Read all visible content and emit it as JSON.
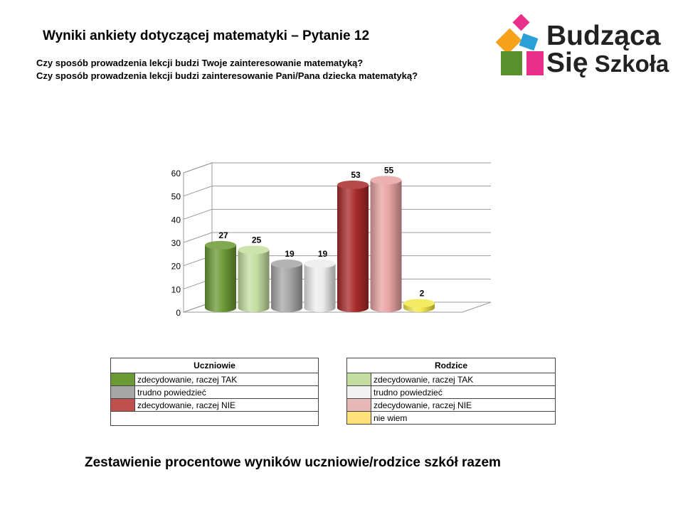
{
  "header": {
    "title": "Wyniki ankiety dotyczącej matematyki – Pytanie 12",
    "question_students": "Czy sposób prowadzenia lekcji budzi Twoje zainteresowanie matematyką?",
    "question_parents": "Czy sposób prowadzenia lekcji budzi zainteresowanie Pani/Pana dziecka matematyką?"
  },
  "logo": {
    "line1": "Budząca",
    "line2_word1": "Się",
    "line2_word2": "Szkoła",
    "colors": [
      "#e8308a",
      "#f7a21b",
      "#5a8f2e",
      "#2a9fd8"
    ]
  },
  "chart_data": {
    "type": "bar",
    "title": "",
    "xlabel": "",
    "ylabel": "",
    "ylim": [
      0,
      60
    ],
    "yticks": [
      0,
      10,
      20,
      30,
      40,
      50,
      60
    ],
    "grid": true,
    "style": "3d-cylinder",
    "bars": [
      {
        "value": 27,
        "label": "27",
        "color": "#6b9a34",
        "group": "Uczniowie",
        "category": "zdecydowanie, raczej TAK"
      },
      {
        "value": 25,
        "label": "25",
        "color": "#c3dea0",
        "group": "Rodzice",
        "category": "zdecydowanie, raczej TAK"
      },
      {
        "value": 19,
        "label": "19",
        "color": "#a6a6a6",
        "group": "Uczniowie",
        "category": "trudno powiedzieć"
      },
      {
        "value": 19,
        "label": "19",
        "color": "#ececec",
        "group": "Rodzice",
        "category": "trudno powiedzieć"
      },
      {
        "value": 53,
        "label": "53",
        "color": "#a82a2a",
        "group": "Uczniowie",
        "category": "zdecydowanie, raczej NIE"
      },
      {
        "value": 55,
        "label": "55",
        "color": "#e8a3a3",
        "group": "Rodzice",
        "category": "zdecydowanie, raczej NIE"
      },
      {
        "value": 2,
        "label": "2",
        "color": "#f2e84a",
        "group": "Rodzice",
        "category": "nie wiem"
      }
    ]
  },
  "legend_students": {
    "header": "Uczniowie",
    "items": [
      {
        "label": "zdecydowanie, raczej TAK",
        "color": "#6b9a34"
      },
      {
        "label": "trudno powiedzieć",
        "color": "#a6a6a6"
      },
      {
        "label": "zdecydowanie, raczej NIE",
        "color": "#c0504d"
      }
    ]
  },
  "legend_parents": {
    "header": "Rodzice",
    "items": [
      {
        "label": "zdecydowanie, raczej TAK",
        "color": "#c3dea0"
      },
      {
        "label": "trudno powiedzieć",
        "color": "#f2f2f2"
      },
      {
        "label": "zdecydowanie, raczej NIE",
        "color": "#e6b9b8"
      },
      {
        "label": "nie wiem",
        "color": "#ffe07a"
      }
    ]
  },
  "footer": {
    "caption": "Zestawienie procentowe wyników uczniowie/rodzice szkół razem"
  }
}
